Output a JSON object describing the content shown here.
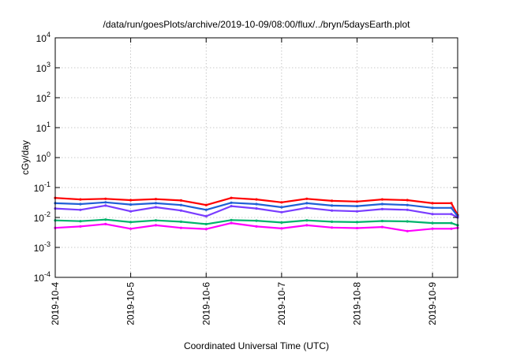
{
  "chart_data": {
    "type": "line",
    "title": "/data/run/goesPlots/archive/2019-10-09/08:00/flux/../bryn/5daysEarth.plot",
    "xlabel": "Coordinated Universal Time (UTC)",
    "ylabel": "cGy/day",
    "y_scale": "log",
    "ylim": [
      0.0001,
      10000
    ],
    "y_ticks": [
      {
        "value": 0.0001,
        "base": "10",
        "exp": "-4"
      },
      {
        "value": 0.001,
        "base": "10",
        "exp": "-3"
      },
      {
        "value": 0.01,
        "base": "10",
        "exp": "-2"
      },
      {
        "value": 0.1,
        "base": "10",
        "exp": "-1"
      },
      {
        "value": 1,
        "base": "10",
        "exp": "0"
      },
      {
        "value": 10,
        "base": "10",
        "exp": "1"
      },
      {
        "value": 100,
        "base": "10",
        "exp": "2"
      },
      {
        "value": 1000,
        "base": "10",
        "exp": "3"
      },
      {
        "value": 10000,
        "base": "10",
        "exp": "4"
      }
    ],
    "xlim": [
      "2019-10-04",
      "2019-10-09 08:00"
    ],
    "x_ticks": [
      "2019-10-4",
      "2019-10-5",
      "2019-10-6",
      "2019-10-7",
      "2019-10-8",
      "2019-10-9"
    ],
    "x_tick_dates": [
      "2019-10-04",
      "2019-10-05",
      "2019-10-06",
      "2019-10-07",
      "2019-10-08",
      "2019-10-09"
    ],
    "grid": true,
    "series": [
      {
        "color": "#ff0000",
        "x": [
          "2019-10-04 00:00",
          "2019-10-04 08:00",
          "2019-10-04 16:00",
          "2019-10-05 00:00",
          "2019-10-05 08:00",
          "2019-10-05 16:00",
          "2019-10-06 00:00",
          "2019-10-06 08:00",
          "2019-10-06 16:00",
          "2019-10-07 00:00",
          "2019-10-07 08:00",
          "2019-10-07 16:00",
          "2019-10-08 00:00",
          "2019-10-08 08:00",
          "2019-10-08 16:00",
          "2019-10-09 00:00",
          "2019-10-09 06:00",
          "2019-10-09 08:00"
        ],
        "values": [
          0.045,
          0.04,
          0.042,
          0.038,
          0.041,
          0.037,
          0.026,
          0.045,
          0.04,
          0.032,
          0.042,
          0.036,
          0.034,
          0.04,
          0.038,
          0.03,
          0.03,
          0.012
        ]
      },
      {
        "color": "#1f5fd6",
        "x": [
          "2019-10-04 00:00",
          "2019-10-04 08:00",
          "2019-10-04 16:00",
          "2019-10-05 00:00",
          "2019-10-05 08:00",
          "2019-10-05 16:00",
          "2019-10-06 00:00",
          "2019-10-06 08:00",
          "2019-10-06 16:00",
          "2019-10-07 00:00",
          "2019-10-07 08:00",
          "2019-10-07 16:00",
          "2019-10-08 00:00",
          "2019-10-08 08:00",
          "2019-10-08 16:00",
          "2019-10-09 00:00",
          "2019-10-09 06:00",
          "2019-10-09 08:00"
        ],
        "values": [
          0.03,
          0.028,
          0.032,
          0.027,
          0.03,
          0.026,
          0.018,
          0.031,
          0.028,
          0.022,
          0.03,
          0.025,
          0.024,
          0.028,
          0.026,
          0.021,
          0.021,
          0.011
        ]
      },
      {
        "color": "#00b36b",
        "x": [
          "2019-10-04 00:00",
          "2019-10-04 08:00",
          "2019-10-04 16:00",
          "2019-10-05 00:00",
          "2019-10-05 08:00",
          "2019-10-05 16:00",
          "2019-10-06 00:00",
          "2019-10-06 08:00",
          "2019-10-06 16:00",
          "2019-10-07 00:00",
          "2019-10-07 08:00",
          "2019-10-07 16:00",
          "2019-10-08 00:00",
          "2019-10-08 08:00",
          "2019-10-08 16:00",
          "2019-10-09 00:00",
          "2019-10-09 06:00",
          "2019-10-09 08:00"
        ],
        "values": [
          0.008,
          0.0075,
          0.0085,
          0.007,
          0.008,
          0.0072,
          0.006,
          0.0082,
          0.0078,
          0.0068,
          0.008,
          0.0072,
          0.007,
          0.0076,
          0.0074,
          0.0065,
          0.0065,
          0.0055
        ]
      },
      {
        "color": "#7a3cff",
        "x": [
          "2019-10-04 00:00",
          "2019-10-04 08:00",
          "2019-10-04 16:00",
          "2019-10-05 00:00",
          "2019-10-05 08:00",
          "2019-10-05 16:00",
          "2019-10-06 00:00",
          "2019-10-06 08:00",
          "2019-10-06 16:00",
          "2019-10-07 00:00",
          "2019-10-07 08:00",
          "2019-10-07 16:00",
          "2019-10-08 00:00",
          "2019-10-08 08:00",
          "2019-10-08 16:00",
          "2019-10-09 00:00",
          "2019-10-09 06:00",
          "2019-10-09 08:00"
        ],
        "values": [
          0.02,
          0.018,
          0.025,
          0.016,
          0.022,
          0.017,
          0.011,
          0.024,
          0.02,
          0.015,
          0.021,
          0.017,
          0.016,
          0.019,
          0.018,
          0.013,
          0.013,
          0.01
        ]
      },
      {
        "color": "#ff00ff",
        "x": [
          "2019-10-04 00:00",
          "2019-10-04 08:00",
          "2019-10-04 16:00",
          "2019-10-05 00:00",
          "2019-10-05 08:00",
          "2019-10-05 16:00",
          "2019-10-06 00:00",
          "2019-10-06 08:00",
          "2019-10-06 16:00",
          "2019-10-07 00:00",
          "2019-10-07 08:00",
          "2019-10-07 16:00",
          "2019-10-08 00:00",
          "2019-10-08 08:00",
          "2019-10-08 16:00",
          "2019-10-09 00:00",
          "2019-10-09 06:00",
          "2019-10-09 08:00"
        ],
        "values": [
          0.0045,
          0.005,
          0.006,
          0.0042,
          0.0055,
          0.0045,
          0.0041,
          0.0065,
          0.005,
          0.0043,
          0.0055,
          0.0046,
          0.0044,
          0.0048,
          0.0035,
          0.0042,
          0.0042,
          0.0045
        ]
      }
    ]
  }
}
